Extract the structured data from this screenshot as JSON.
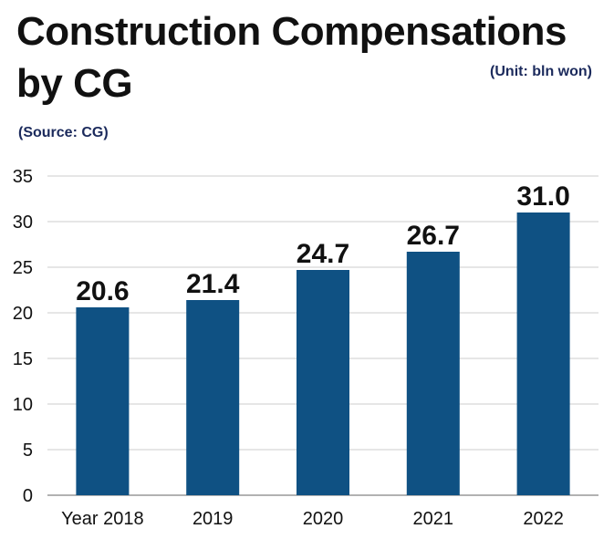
{
  "header": {
    "title_line1": "Construction Compensations",
    "title_line2": "by CG",
    "unit": "(Unit: bln won)",
    "source": "(Source: CG)"
  },
  "chart_data": {
    "type": "bar",
    "title": "Construction Compensations by CG",
    "categories": [
      "Year 2018",
      "2019",
      "2020",
      "2021",
      "2022"
    ],
    "values": [
      20.6,
      21.4,
      24.7,
      26.7,
      31.0
    ],
    "value_labels": [
      "20.6",
      "21.4",
      "24.7",
      "26.7",
      "31.0"
    ],
    "ylim": [
      0,
      35
    ],
    "yticks": [
      0,
      5,
      10,
      15,
      20,
      25,
      30,
      35
    ],
    "grid": true,
    "bar_color": "#0f5183",
    "grid_color": "#cccccc"
  }
}
